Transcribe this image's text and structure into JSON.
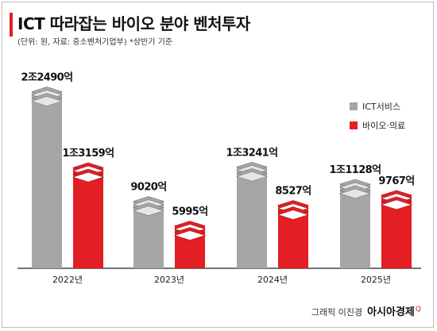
{
  "header": {
    "title": "ICT 따라잡는 바이오 분야 벤처투자",
    "subtitle": "(단위: 원, 자료: 중소벤처기업부) *상반기 기준"
  },
  "legend": [
    {
      "label": "ICT서비스",
      "color": "#a6a6a6"
    },
    {
      "label": "바이오·의료",
      "color": "#e31e24"
    }
  ],
  "footer": {
    "credit": "그래픽 이진경",
    "brand": "아시아경제",
    "brand_mark": "Q"
  },
  "chart_data": {
    "type": "bar",
    "categories": [
      "2022년",
      "2023년",
      "2024년",
      "2025년"
    ],
    "series": [
      {
        "name": "ICT서비스",
        "color": "#a6a6a6",
        "values": [
          22490,
          9020,
          13241,
          11128
        ],
        "labels": [
          "2조2490억",
          "9020억",
          "1조3241억",
          "1조1128억"
        ]
      },
      {
        "name": "바이오·의료",
        "color": "#e31e24",
        "values": [
          13159,
          5995,
          8527,
          9767
        ],
        "labels": [
          "1조3159억",
          "5995억",
          "8527억",
          "9767억"
        ]
      }
    ],
    "unit": "억원",
    "ylim": [
      0,
      24000
    ],
    "legend_position": "right",
    "grid": false
  }
}
